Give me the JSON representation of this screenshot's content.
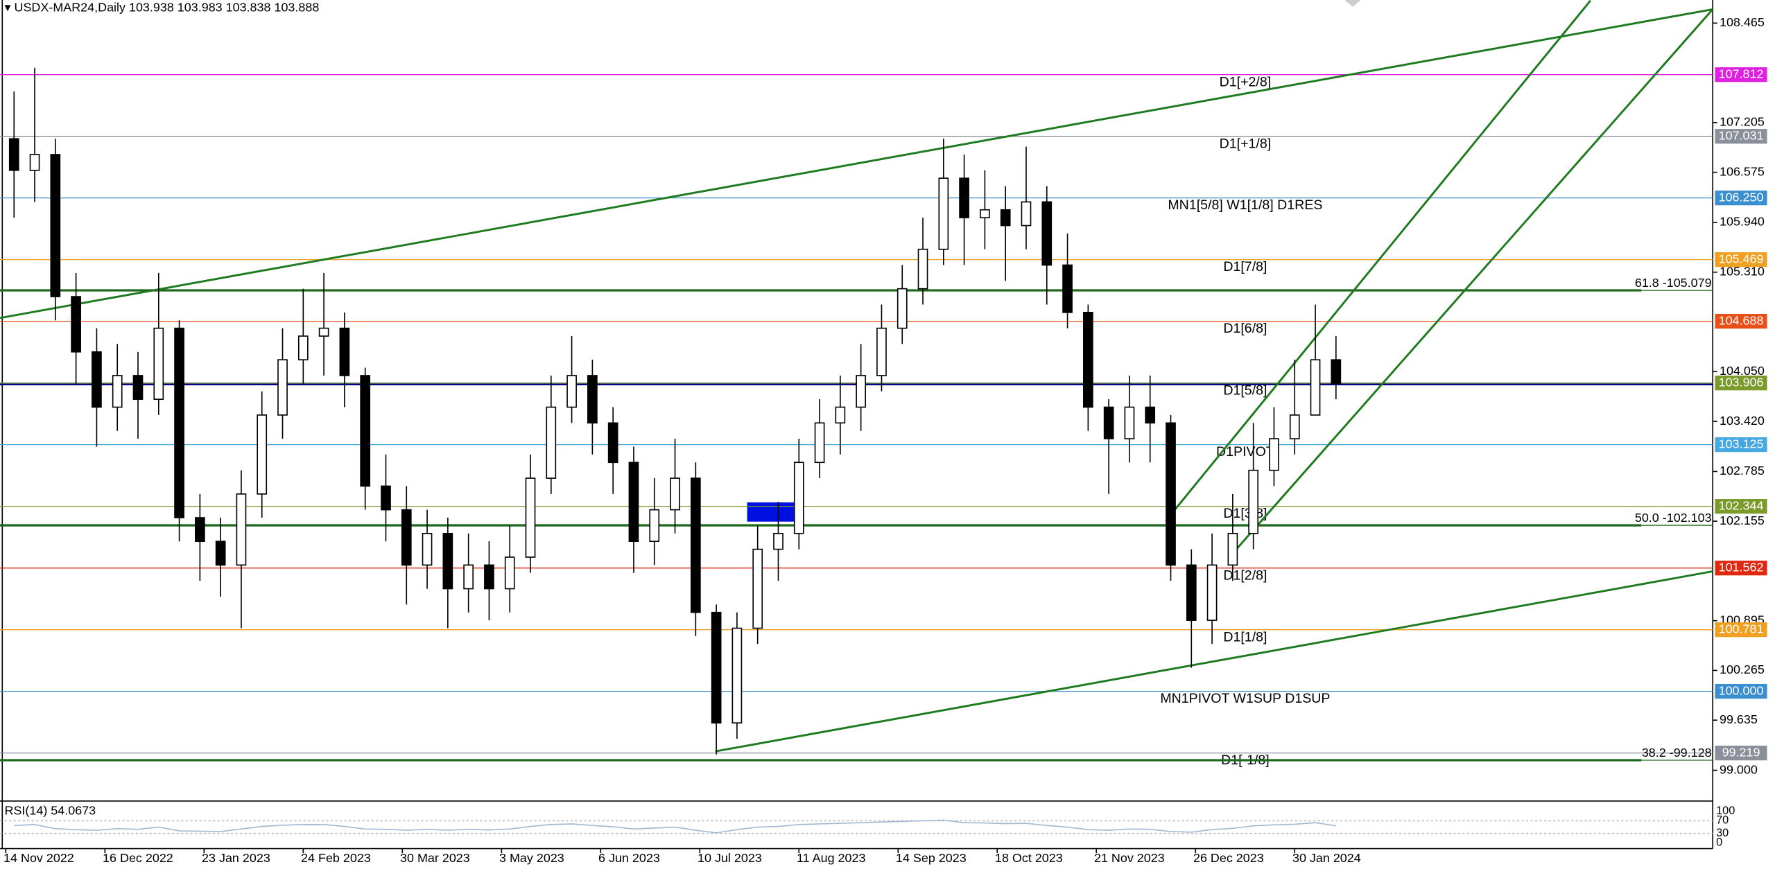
{
  "chart_data": {
    "type": "candlestick",
    "symbol": "USDX-MAR24,Daily",
    "ohlc": [
      103.938,
      103.983,
      103.838,
      103.888
    ],
    "x": [
      2,
      7,
      12,
      17,
      22,
      27,
      32,
      37,
      42,
      47,
      52,
      57,
      62,
      67,
      72,
      77,
      82,
      87,
      92,
      97,
      102,
      107,
      112,
      117,
      122,
      127,
      132,
      137,
      142,
      147,
      152,
      157,
      162,
      167,
      172,
      177,
      182,
      187,
      192,
      197,
      202,
      207,
      212,
      217,
      222,
      227,
      232,
      237,
      242,
      247,
      252,
      257,
      262,
      267,
      272,
      277,
      282,
      287,
      292,
      297,
      302,
      307,
      312,
      317,
      322
    ],
    "open": [
      107.0,
      106.6,
      106.8,
      105.0,
      104.3,
      103.6,
      104.0,
      103.7,
      104.6,
      102.2,
      101.9,
      101.6,
      102.5,
      103.5,
      104.2,
      104.5,
      104.6,
      104.0,
      102.6,
      102.3,
      101.6,
      102.0,
      101.3,
      101.6,
      101.3,
      101.7,
      102.7,
      103.6,
      104.0,
      103.4,
      102.9,
      101.9,
      102.3,
      102.7,
      101.0,
      99.6,
      100.8,
      101.8,
      102.0,
      102.9,
      103.4,
      103.6,
      104.0,
      104.6,
      105.1,
      105.6,
      106.5,
      106.0,
      106.1,
      105.9,
      106.2,
      105.4,
      104.8,
      103.6,
      103.2,
      103.6,
      103.4,
      101.6,
      100.9,
      101.6,
      102.0,
      102.8,
      103.2,
      103.5,
      104.2
    ],
    "high": [
      107.6,
      107.9,
      107.0,
      105.3,
      104.6,
      104.4,
      104.3,
      105.3,
      104.7,
      102.5,
      102.2,
      102.8,
      103.8,
      104.6,
      105.1,
      105.3,
      104.8,
      104.1,
      103.0,
      102.6,
      102.3,
      102.2,
      102.0,
      101.9,
      102.1,
      103.0,
      104.0,
      104.5,
      104.2,
      103.6,
      103.1,
      102.7,
      103.2,
      102.9,
      101.1,
      101.0,
      102.1,
      102.4,
      103.2,
      103.7,
      104.0,
      104.4,
      104.9,
      105.4,
      106.0,
      107.0,
      106.8,
      106.6,
      106.4,
      106.9,
      106.4,
      105.8,
      104.9,
      103.7,
      104.0,
      104.0,
      103.5,
      101.8,
      102.0,
      102.5,
      103.4,
      103.6,
      104.2,
      104.9,
      104.5
    ],
    "low": [
      106.0,
      106.2,
      104.7,
      103.9,
      103.1,
      103.3,
      103.2,
      103.5,
      101.9,
      101.4,
      101.2,
      100.8,
      102.2,
      103.2,
      103.9,
      104.0,
      103.6,
      102.3,
      101.9,
      101.1,
      101.3,
      100.8,
      101.0,
      100.9,
      101.0,
      101.5,
      102.5,
      103.4,
      103.0,
      102.5,
      101.5,
      101.6,
      102.0,
      100.7,
      99.2,
      99.4,
      100.6,
      101.4,
      101.8,
      102.7,
      103.0,
      103.3,
      103.8,
      104.4,
      104.9,
      105.4,
      105.4,
      105.6,
      105.2,
      105.6,
      104.9,
      104.6,
      103.3,
      102.5,
      102.9,
      102.9,
      101.4,
      100.3,
      100.6,
      101.4,
      101.8,
      102.6,
      103.0,
      103.5,
      103.7
    ],
    "close": [
      106.6,
      106.8,
      105.0,
      104.3,
      103.6,
      104.0,
      103.7,
      104.6,
      102.2,
      101.9,
      101.6,
      102.5,
      103.5,
      104.2,
      104.5,
      104.6,
      104.0,
      102.6,
      102.3,
      101.6,
      102.0,
      101.3,
      101.6,
      101.3,
      101.7,
      102.7,
      103.6,
      104.0,
      103.4,
      102.9,
      101.9,
      102.3,
      102.7,
      101.0,
      99.6,
      100.8,
      101.8,
      102.0,
      102.9,
      103.4,
      103.6,
      104.0,
      104.6,
      105.1,
      105.6,
      106.5,
      106.0,
      106.1,
      105.9,
      106.2,
      105.4,
      104.8,
      103.6,
      103.2,
      103.6,
      103.4,
      101.6,
      100.9,
      101.6,
      102.0,
      102.8,
      103.2,
      103.5,
      104.2,
      103.9
    ],
    "xlim": [
      -1.4,
      413.2
    ],
    "ylim": [
      98.61,
      108.757
    ],
    "xticks": [
      {
        "value": 0,
        "label": "14 Nov 2022"
      },
      {
        "value": 24,
        "label": "16 Dec 2022"
      },
      {
        "value": 48,
        "label": "23 Jan 2023"
      },
      {
        "value": 72,
        "label": "24 Feb 2023"
      },
      {
        "value": 96,
        "label": "30 Mar 2023"
      },
      {
        "value": 120,
        "label": "3 May 2023"
      },
      {
        "value": 144,
        "label": "6 Jun 2023"
      },
      {
        "value": 168,
        "label": "10 Jul 2023"
      },
      {
        "value": 192,
        "label": "11 Aug 2023"
      },
      {
        "value": 216,
        "label": "14 Sep 2023"
      },
      {
        "value": 240,
        "label": "18 Oct 2023"
      },
      {
        "value": 264,
        "label": "21 Nov 2023"
      },
      {
        "value": 288,
        "label": "26 Dec 2023"
      },
      {
        "value": 312,
        "label": "30 Jan 2024"
      }
    ],
    "yticks": [
      108.465,
      107.205,
      106.575,
      {
        "value": 105.94,
        "label": "105.940"
      },
      {
        "value": 105.31,
        "label": "105.310"
      },
      {
        "value": 104.05,
        "label": "104.050"
      },
      {
        "value": 103.42,
        "label": "103.420"
      },
      102.785,
      102.155,
      100.895,
      100.265,
      99.635,
      {
        "value": 99.0,
        "label": "99.000"
      }
    ],
    "levels": [
      {
        "name": "D1[+2/8]",
        "price": 107.812,
        "color": "#e020e0"
      },
      {
        "name": "D1[+1/8]",
        "price": 107.031,
        "color": "#8a8f99"
      },
      {
        "name": "MN1[5/8] W1[1/8] D1RES",
        "price": {
          "value": 106.25,
          "label": "106.250"
        },
        "color": "#3a8fd0"
      },
      {
        "name": "D1[7/8]",
        "price": 105.469,
        "color": "#f0a020"
      },
      {
        "name": "D1[6/8]",
        "price": 104.688,
        "color": "#e8501a"
      },
      {
        "name": "D1[5/8]",
        "price": 103.906,
        "color": "#7a9a2a"
      },
      {
        "name": "D1PIVOT",
        "price": 103.125,
        "color": "#46a8e0"
      },
      {
        "name": "D1[3/8]",
        "price": 102.344,
        "color": "#7a9a2a"
      },
      {
        "name": "D1[2/8]",
        "price": 101.562,
        "color": "#e02810"
      },
      {
        "name": "D1[1/8]",
        "price": 100.781,
        "color": "#f0a020"
      },
      {
        "name": "MN1PIVOT W1SUP D1SUP",
        "price": {
          "value": 100.0,
          "label": "100.000"
        },
        "color": "#3a8fd0"
      },
      {
        "name": "D1[-1/8]",
        "price": 99.219,
        "color": "#8a8f99"
      }
    ],
    "fib": [
      {
        "label": "61.8 -105.079",
        "value": 105.079
      },
      {
        "label": "50.0 -102.103",
        "value": 102.103
      },
      {
        "label": "38.2 -99.128",
        "value": 99.128
      }
    ],
    "fib_color": "#1e6b1e",
    "line_color": "#1e7a1e",
    "price_line_color": "#000080",
    "trendlines": [
      [
        [
          -1.4,
          104.73
        ],
        [
          413.2,
          108.64
        ]
      ],
      [
        [
          280.8,
          102.16
        ],
        [
          383.6,
          108.75
        ]
      ],
      [
        [
          296.7,
          101.73
        ],
        [
          413.2,
          108.64
        ]
      ],
      [
        [
          171.8,
          99.24
        ],
        [
          413.2,
          101.52
        ]
      ]
    ],
    "rsi": {
      "name": "RSI(14)",
      "ylim": [
        0,
        100
      ],
      "yticks": [
        100,
        70,
        30,
        0
      ],
      "color": "#a0b8d0",
      "values": [
        55,
        58,
        45,
        42,
        40,
        45,
        43,
        50,
        38,
        37,
        36,
        44,
        52,
        56,
        58,
        58,
        52,
        44,
        43,
        40,
        43,
        40,
        43,
        41,
        44,
        52,
        58,
        60,
        55,
        51,
        44,
        47,
        50,
        40,
        32,
        42,
        50,
        52,
        58,
        60,
        62,
        64,
        66,
        68,
        70,
        72,
        64,
        63,
        61,
        62,
        55,
        50,
        42,
        40,
        44,
        43,
        36,
        34,
        42,
        46,
        54,
        57,
        59,
        64,
        54.0673
      ]
    }
  }
}
